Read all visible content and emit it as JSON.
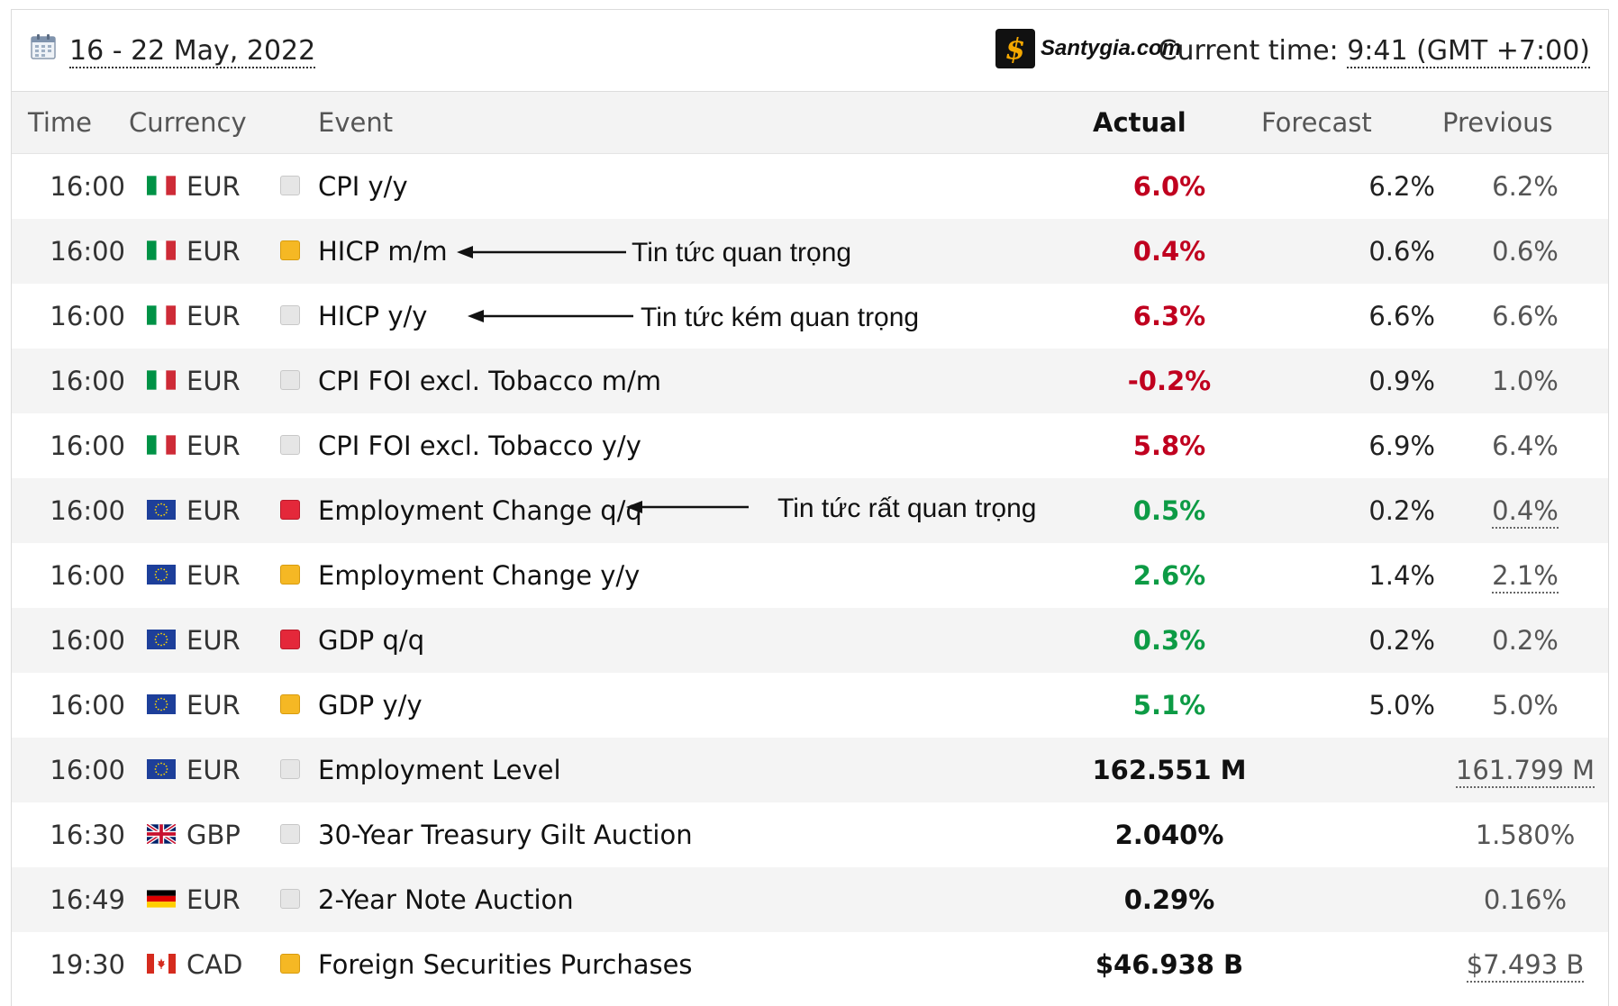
{
  "header": {
    "date_range": "16 - 22 May, 2022",
    "brand": "Santygia.com",
    "brand_mark": "$",
    "current_time_label": "Current time:",
    "current_time_value": "9:41 (GMT +7:00)"
  },
  "columns": {
    "time": "Time",
    "currency": "Currency",
    "event": "Event",
    "actual": "Actual",
    "forecast": "Forecast",
    "previous": "Previous"
  },
  "rows": [
    {
      "time": "16:00",
      "flag": "it",
      "currency": "EUR",
      "impact": "low",
      "event": "CPI y/y",
      "actual": "6.0%",
      "actual_status": "neg",
      "forecast": "6.2%",
      "previous": "6.2%",
      "previous_link": false
    },
    {
      "time": "16:00",
      "flag": "it",
      "currency": "EUR",
      "impact": "med",
      "event": "HICP m/m",
      "actual": "0.4%",
      "actual_status": "neg",
      "forecast": "0.6%",
      "previous": "0.6%",
      "previous_link": false
    },
    {
      "time": "16:00",
      "flag": "it",
      "currency": "EUR",
      "impact": "low",
      "event": "HICP y/y",
      "actual": "6.3%",
      "actual_status": "neg",
      "forecast": "6.6%",
      "previous": "6.6%",
      "previous_link": false
    },
    {
      "time": "16:00",
      "flag": "it",
      "currency": "EUR",
      "impact": "low",
      "event": "CPI FOI excl. Tobacco m/m",
      "actual": "-0.2%",
      "actual_status": "neg",
      "forecast": "0.9%",
      "previous": "1.0%",
      "previous_link": false
    },
    {
      "time": "16:00",
      "flag": "it",
      "currency": "EUR",
      "impact": "low",
      "event": "CPI FOI excl. Tobacco y/y",
      "actual": "5.8%",
      "actual_status": "neg",
      "forecast": "6.9%",
      "previous": "6.4%",
      "previous_link": false
    },
    {
      "time": "16:00",
      "flag": "eu",
      "currency": "EUR",
      "impact": "high",
      "event": "Employment Change q/q",
      "actual": "0.5%",
      "actual_status": "pos",
      "forecast": "0.2%",
      "previous": "0.4%",
      "previous_link": true
    },
    {
      "time": "16:00",
      "flag": "eu",
      "currency": "EUR",
      "impact": "med",
      "event": "Employment Change y/y",
      "actual": "2.6%",
      "actual_status": "pos",
      "forecast": "1.4%",
      "previous": "2.1%",
      "previous_link": true
    },
    {
      "time": "16:00",
      "flag": "eu",
      "currency": "EUR",
      "impact": "high",
      "event": "GDP q/q",
      "actual": "0.3%",
      "actual_status": "pos",
      "forecast": "0.2%",
      "previous": "0.2%",
      "previous_link": false
    },
    {
      "time": "16:00",
      "flag": "eu",
      "currency": "EUR",
      "impact": "med",
      "event": "GDP y/y",
      "actual": "5.1%",
      "actual_status": "pos",
      "forecast": "5.0%",
      "previous": "5.0%",
      "previous_link": false
    },
    {
      "time": "16:00",
      "flag": "eu",
      "currency": "EUR",
      "impact": "low",
      "event": "Employment Level",
      "actual": "162.551 M",
      "actual_status": "neutral",
      "forecast": "",
      "previous": "161.799 M",
      "previous_link": true
    },
    {
      "time": "16:30",
      "flag": "gb",
      "currency": "GBP",
      "impact": "low",
      "event": "30-Year Treasury Gilt Auction",
      "actual": "2.040%",
      "actual_status": "neutral",
      "forecast": "",
      "previous": "1.580%",
      "previous_link": false
    },
    {
      "time": "16:49",
      "flag": "de",
      "currency": "EUR",
      "impact": "low",
      "event": "2-Year Note Auction",
      "actual": "0.29%",
      "actual_status": "neutral",
      "forecast": "",
      "previous": "0.16%",
      "previous_link": false
    },
    {
      "time": "19:30",
      "flag": "ca",
      "currency": "CAD",
      "impact": "med",
      "event": "Foreign Securities Purchases",
      "actual": "$46.938 B",
      "actual_status": "neutral",
      "forecast": "",
      "previous": "$7.493 B",
      "previous_link": true
    }
  ],
  "annotations": {
    "important": "Tin tức quan trọng",
    "less_important": "Tin tức kém quan trọng",
    "very_important": "Tin tức rất quan trọng"
  },
  "colors": {
    "negative": "#c0001f",
    "positive": "#0d9b45",
    "impact_low": "#e6e6e6",
    "impact_med": "#f5b824",
    "impact_high": "#e4283a"
  }
}
